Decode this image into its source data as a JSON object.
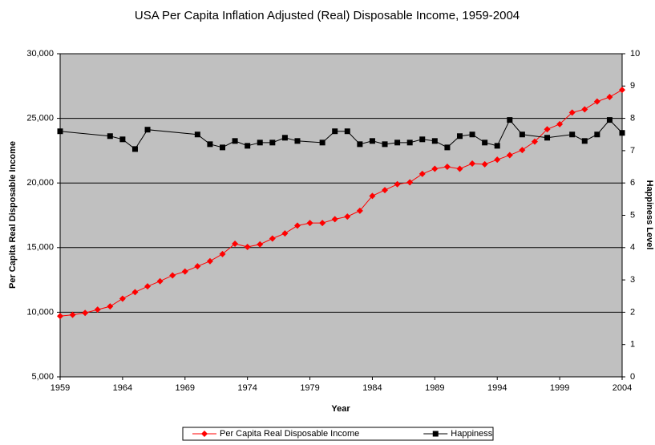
{
  "chart_data": {
    "type": "line",
    "title": "USA Per Capita Inflation Adjusted (Real) Disposable Income, 1959-2004",
    "xlabel": "Year",
    "ylabel": "Per Capita Real Disposable Income",
    "y2label": "Happiness Level",
    "x": [
      1959,
      1960,
      1961,
      1962,
      1963,
      1964,
      1965,
      1966,
      1967,
      1968,
      1969,
      1970,
      1971,
      1972,
      1973,
      1974,
      1975,
      1976,
      1977,
      1978,
      1979,
      1980,
      1981,
      1982,
      1983,
      1984,
      1985,
      1986,
      1987,
      1988,
      1989,
      1990,
      1991,
      1992,
      1993,
      1994,
      1995,
      1996,
      1997,
      1998,
      1999,
      2000,
      2001,
      2002,
      2003,
      2004
    ],
    "series": [
      {
        "name": "Per Capita Real Disposable Income",
        "color": "#ff0000",
        "marker": "diamond",
        "values": [
          9700,
          9800,
          9950,
          10200,
          10450,
          11050,
          11550,
          12000,
          12400,
          12850,
          13150,
          13550,
          13950,
          14500,
          15300,
          15050,
          15250,
          15700,
          16100,
          16700,
          16900,
          16900,
          17200,
          17400,
          17850,
          19000,
          19450,
          19900,
          20050,
          20700,
          21100,
          21250,
          21100,
          21500,
          21450,
          21800,
          22150,
          22550,
          23200,
          24150,
          24550,
          25450,
          25700,
          26300,
          26650,
          27200
        ]
      },
      {
        "name": "Happiness",
        "color": "#000000",
        "marker": "square",
        "axis": "y2",
        "x": [
          1959,
          1963,
          1964,
          1965,
          1966,
          1970,
          1971,
          1972,
          1973,
          1974,
          1975,
          1976,
          1977,
          1978,
          1980,
          1981,
          1982,
          1983,
          1984,
          1985,
          1986,
          1987,
          1988,
          1989,
          1990,
          1991,
          1992,
          1993,
          1994,
          1995,
          1996,
          1998,
          2000,
          2001,
          2002,
          2003,
          2004
        ],
        "values": [
          7.6,
          7.45,
          7.35,
          7.05,
          7.65,
          7.5,
          7.2,
          7.1,
          7.3,
          7.15,
          7.25,
          7.25,
          7.4,
          7.3,
          7.25,
          7.6,
          7.6,
          7.2,
          7.3,
          7.2,
          7.25,
          7.25,
          7.35,
          7.3,
          7.1,
          7.45,
          7.5,
          7.25,
          7.15,
          7.95,
          7.5,
          7.4,
          7.5,
          7.3,
          7.5,
          7.95,
          7.55
        ]
      }
    ],
    "xlim": [
      1959,
      2004
    ],
    "xticks": [
      1959,
      1964,
      1969,
      1974,
      1979,
      1984,
      1989,
      1994,
      1999,
      2004
    ],
    "ylim": [
      5000,
      30000
    ],
    "yticks": [
      {
        "value": 5000,
        "label": "5,000"
      },
      {
        "value": 10000,
        "label": "10,000"
      },
      {
        "value": 15000,
        "label": "15,000"
      },
      {
        "value": 20000,
        "label": "20,000"
      },
      {
        "value": 25000,
        "label": "25,000"
      },
      {
        "value": 30000,
        "label": "30,000"
      }
    ],
    "y2lim": [
      0,
      10
    ],
    "y2ticks": [
      0,
      1,
      2,
      3,
      4,
      5,
      6,
      7,
      8,
      9,
      10
    ],
    "grid": true,
    "legend": "bottom"
  }
}
